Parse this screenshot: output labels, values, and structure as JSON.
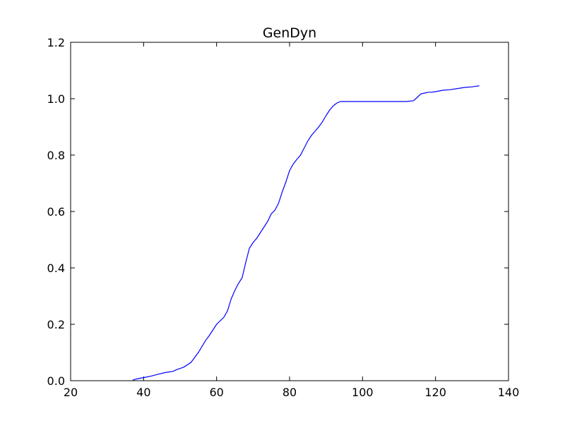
{
  "chart_data": {
    "type": "line",
    "title": "GenDyn",
    "xlabel": "",
    "ylabel": "",
    "xlim": [
      20,
      140
    ],
    "ylim": [
      0.0,
      1.2
    ],
    "xticks": [
      20,
      40,
      60,
      80,
      100,
      120,
      140
    ],
    "xtick_labels": [
      "20",
      "40",
      "60",
      "80",
      "100",
      "120",
      "140"
    ],
    "yticks": [
      0.0,
      0.2,
      0.4,
      0.6,
      0.8,
      1.0,
      1.2
    ],
    "ytick_labels": [
      "0.0",
      "0.2",
      "0.4",
      "0.6",
      "0.8",
      "1.0",
      "1.2"
    ],
    "grid": false,
    "series": [
      {
        "color": "#0000ff",
        "x": [
          37,
          38,
          40,
          42,
          44,
          46,
          48,
          49,
          51,
          53,
          55,
          57,
          58,
          59,
          60,
          62,
          63,
          64,
          65,
          66,
          67,
          68,
          69,
          70,
          71,
          72,
          73,
          74,
          75,
          76,
          77,
          78,
          79,
          80,
          81,
          82,
          83,
          84,
          85,
          86,
          87,
          88,
          89,
          90,
          91,
          92,
          93,
          94,
          95,
          100,
          105,
          110,
          112,
          114,
          115,
          116,
          117,
          118,
          119,
          120,
          122,
          124,
          126,
          128,
          130,
          132
        ],
        "y": [
          0.002,
          0.006,
          0.011,
          0.016,
          0.023,
          0.029,
          0.033,
          0.039,
          0.048,
          0.065,
          0.1,
          0.143,
          0.16,
          0.18,
          0.2,
          0.225,
          0.248,
          0.29,
          0.32,
          0.345,
          0.365,
          0.42,
          0.47,
          0.49,
          0.505,
          0.525,
          0.545,
          0.565,
          0.592,
          0.605,
          0.63,
          0.67,
          0.705,
          0.745,
          0.768,
          0.785,
          0.8,
          0.825,
          0.85,
          0.87,
          0.885,
          0.9,
          0.918,
          0.94,
          0.96,
          0.975,
          0.985,
          0.99,
          0.99,
          0.99,
          0.99,
          0.99,
          0.99,
          0.993,
          1.005,
          1.017,
          1.02,
          1.023,
          1.023,
          1.025,
          1.03,
          1.032,
          1.036,
          1.04,
          1.042,
          1.046
        ]
      }
    ]
  }
}
